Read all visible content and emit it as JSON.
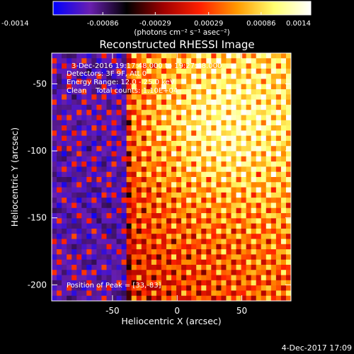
{
  "footer": {
    "timestamp": "4-Dec-2017 17:09"
  },
  "chart_data": {
    "type": "heatmap",
    "title": "Reconstructed RHESSI Image",
    "xlabel": "Heliocentric X (arcsec)",
    "ylabel": "Heliocentric Y (arcsec)",
    "xlim": [
      -97,
      88
    ],
    "ylim": [
      -212,
      -27
    ],
    "x_ticks": [
      -50,
      0,
      50
    ],
    "x_tick_labels": [
      "-50",
      "0",
      "50"
    ],
    "y_ticks": [
      -50,
      -100,
      -150,
      -200
    ],
    "y_tick_labels": [
      "-50",
      "-100",
      "-150",
      "-200"
    ],
    "annotations": [
      "3-Dec-2016 19:17:48.000 to 19:27:48.000",
      "Detectors: 3F 9F, Att 0",
      "Energy Range: 12.0 - 25.0 keV",
      "Clean    Total counts: 1.10E+04"
    ],
    "peak_label": "Position of Peak = [33,-83]",
    "peak_position": [
      33,
      -83
    ],
    "colorbar": {
      "min": -0.0014,
      "max": 0.0014,
      "tick_values": [
        -0.0014,
        -0.00086,
        -0.00029,
        0.00029,
        0.00086,
        0.0014
      ],
      "tick_labels": [
        "-0.0014",
        "-0.00086",
        "-0.00029",
        "0.00029",
        "0.00086",
        "0.0014"
      ],
      "label": "(photons cm⁻² s⁻¹ asec⁻²)",
      "colormap": [
        "#0000ff",
        "#6a1fb0",
        "#000000",
        "#a00000",
        "#ff2000",
        "#ff9a00",
        "#ffff70",
        "#ffffff"
      ]
    }
  }
}
